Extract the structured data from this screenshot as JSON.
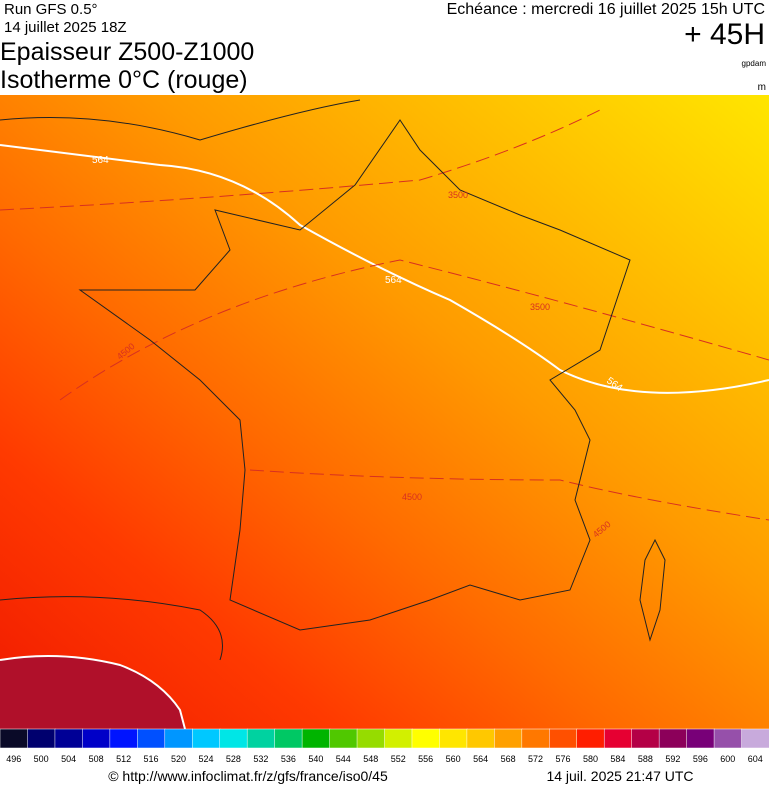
{
  "header": {
    "run": "Run GFS 0.5°",
    "run_date": "14 juillet 2025 18Z",
    "valid": "Echéance : mercredi 16 juillet 2025 15h UTC",
    "lead": "+ 45H",
    "title_1": "Epaisseur Z500-Z1000",
    "title_2": "Isotherme 0°C (rouge)",
    "unit_1": "gpdam",
    "unit_2": "m"
  },
  "map": {
    "contour_labels": [
      "564",
      "564",
      "564",
      "3500",
      "3500",
      "4500",
      "4500",
      "4500"
    ]
  },
  "legend": {
    "values": [
      496,
      500,
      504,
      508,
      512,
      516,
      520,
      524,
      528,
      532,
      536,
      540,
      544,
      548,
      552,
      556,
      560,
      564,
      568,
      572,
      576,
      580,
      584,
      588,
      592,
      596,
      600,
      604
    ],
    "colors": [
      "#0a0a28",
      "#00006e",
      "#000096",
      "#0000c8",
      "#0014ff",
      "#0050ff",
      "#0096ff",
      "#00c8ff",
      "#00e6e6",
      "#00d2a0",
      "#00c864",
      "#00b400",
      "#50c800",
      "#96dc00",
      "#d2f000",
      "#ffff00",
      "#ffe600",
      "#ffc800",
      "#ffa000",
      "#ff7800",
      "#ff5000",
      "#ff1e00",
      "#e60032",
      "#b40046",
      "#8c005a",
      "#780078",
      "#9650aa",
      "#c8aadc"
    ]
  },
  "footer": {
    "url": "© http://www.infoclimat.fr/z/gfs/france/iso0/45",
    "timestamp": "14 juil. 2025 21:47 UTC"
  }
}
